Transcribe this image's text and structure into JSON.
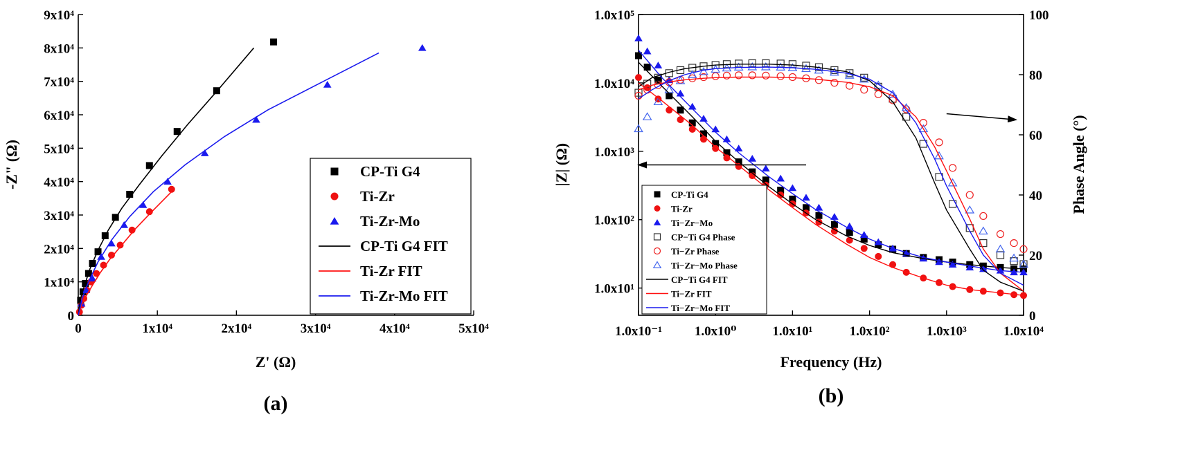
{
  "charts": [
    {
      "id": "a",
      "type": "scatter",
      "panel_label": "(a)",
      "xlabel": "Z' (Ω)",
      "ylabel": "-Z\" (Ω)",
      "xlim": [
        0,
        50000
      ],
      "ylim": [
        0,
        90000
      ],
      "xticks": [
        {
          "v": 0,
          "label": "0"
        },
        {
          "v": 10000,
          "label": "1x10⁴"
        },
        {
          "v": 20000,
          "label": "2x10⁴"
        },
        {
          "v": 30000,
          "label": "3x10⁴"
        },
        {
          "v": 40000,
          "label": "4x10⁴"
        },
        {
          "v": 50000,
          "label": "5x10⁴"
        }
      ],
      "yticks": [
        {
          "v": 0,
          "label": "0"
        },
        {
          "v": 10000,
          "label": "1x10⁴"
        },
        {
          "v": 20000,
          "label": "2x10⁴"
        },
        {
          "v": 30000,
          "label": "3x10⁴"
        },
        {
          "v": 40000,
          "label": "4x10⁴"
        },
        {
          "v": 50000,
          "label": "5x10⁴"
        },
        {
          "v": 60000,
          "label": "6x10⁴"
        },
        {
          "v": 70000,
          "label": "7x10⁴"
        },
        {
          "v": 80000,
          "label": "8x10⁴"
        },
        {
          "v": 90000,
          "label": "9x10⁴"
        }
      ],
      "legend_position": "bottom-right",
      "series": [
        {
          "name": "CP-Ti G4",
          "kind": "marker",
          "marker": "square",
          "color": "#000000",
          "x": [
            300,
            600,
            900,
            1300,
            1800,
            2500,
            3400,
            4700,
            6500,
            9000,
            12500,
            17500,
            24700
          ],
          "y": [
            4500,
            7000,
            9500,
            12500,
            15500,
            19000,
            23800,
            29300,
            36200,
            44800,
            55000,
            67200,
            81800
          ]
        },
        {
          "name": "Ti-Zr",
          "kind": "marker",
          "marker": "circle",
          "color": "#ee1111",
          "x": [
            150,
            400,
            700,
            1100,
            1600,
            2300,
            3200,
            4200,
            5300,
            6800,
            9000,
            11800
          ],
          "y": [
            1000,
            3000,
            5000,
            7500,
            10000,
            12500,
            15000,
            18000,
            21000,
            25500,
            31000,
            37700
          ]
        },
        {
          "name": "Ti-Zr-Mo",
          "kind": "marker",
          "marker": "triangle",
          "color": "#1a1aee",
          "x": [
            400,
            1000,
            1800,
            2900,
            4200,
            5800,
            8200,
            11300,
            16000,
            22500,
            31500,
            43500
          ],
          "y": [
            3500,
            7500,
            11000,
            17500,
            21500,
            27000,
            33000,
            40000,
            48500,
            58500,
            69000,
            80000
          ]
        },
        {
          "name": "CP-Ti G4 FIT",
          "kind": "line",
          "color": "#000000",
          "x": [
            0,
            300,
            800,
            1500,
            2500,
            3800,
            5500,
            7700,
            10500,
            13800,
            17500,
            22200
          ],
          "y": [
            0,
            5000,
            9000,
            14000,
            19500,
            25500,
            32000,
            39000,
            47500,
            57000,
            67000,
            80000
          ]
        },
        {
          "name": "Ti-Zr FIT",
          "kind": "line",
          "color": "#ff1111",
          "x": [
            0,
            400,
            1000,
            1800,
            2800,
            4000,
            5500,
            7200,
            9300,
            11800
          ],
          "y": [
            0,
            3000,
            5800,
            9000,
            12800,
            16800,
            21000,
            25800,
            31000,
            37000
          ]
        },
        {
          "name": "Ti-Zr-Mo FIT",
          "kind": "line",
          "color": "#1a1aee",
          "x": [
            0,
            500,
            1300,
            2500,
            4200,
            6500,
            9500,
            13500,
            18500,
            24000,
            31000,
            38000
          ],
          "y": [
            0,
            5000,
            10000,
            16000,
            22500,
            29500,
            37000,
            45000,
            53500,
            61500,
            70000,
            78500
          ]
        }
      ]
    },
    {
      "id": "b",
      "type": "scatter",
      "panel_label": "(b)",
      "xlabel": "Frequency (Hz)",
      "ylabel": "|Z| (Ω)",
      "y2label": "Phase Angle (°)",
      "x_scale": "log",
      "y_scale": "log",
      "xlim": [
        0.1,
        10000
      ],
      "ylim": [
        4,
        100000
      ],
      "y2lim": [
        0,
        100
      ],
      "xticks": [
        {
          "v": 0.1,
          "label": "1.0x10⁻¹"
        },
        {
          "v": 1,
          "label": "1.0x10⁰"
        },
        {
          "v": 10,
          "label": "1.0x10¹"
        },
        {
          "v": 100,
          "label": "1.0x10²"
        },
        {
          "v": 1000,
          "label": "1.0x10³"
        },
        {
          "v": 10000,
          "label": "1.0x10⁴"
        }
      ],
      "yticks": [
        {
          "v": 10,
          "label": "1.0x10¹"
        },
        {
          "v": 100,
          "label": "1.0x10²"
        },
        {
          "v": 1000,
          "label": "1.0x10³"
        },
        {
          "v": 10000,
          "label": "1.0x10⁴"
        },
        {
          "v": 100000,
          "label": "1.0x10⁵"
        }
      ],
      "y2ticks": [
        {
          "v": 0,
          "label": "0"
        },
        {
          "v": 20,
          "label": "20"
        },
        {
          "v": 40,
          "label": "40"
        },
        {
          "v": 60,
          "label": "60"
        },
        {
          "v": 80,
          "label": "80"
        },
        {
          "v": 100,
          "label": "100"
        }
      ],
      "legend_position": "bottom-left",
      "annotations": [
        {
          "kind": "arrow",
          "from": [
            1000,
            67
          ],
          "to": [
            8000,
            65
          ],
          "axis": "y2"
        },
        {
          "kind": "arrow",
          "from": [
            15,
            50
          ],
          "to": [
            0.1,
            50
          ],
          "axis": "y2"
        }
      ],
      "series": [
        {
          "name": "CP-Ti G4",
          "kind": "marker",
          "marker": "square",
          "fill": "solid",
          "color": "#000000",
          "axis": "y",
          "x": [
            0.1,
            0.13,
            0.18,
            0.25,
            0.35,
            0.5,
            0.7,
            1,
            1.4,
            2,
            3,
            4.5,
            7,
            10,
            15,
            22,
            35,
            55,
            85,
            130,
            200,
            300,
            500,
            800,
            1200,
            2000,
            3000,
            5000,
            7500,
            10000
          ],
          "y": [
            25000,
            17000,
            11000,
            6500,
            4000,
            2600,
            1800,
            1300,
            950,
            700,
            500,
            380,
            270,
            200,
            150,
            115,
            85,
            65,
            52,
            43,
            37,
            32,
            28,
            26,
            24,
            22,
            21,
            20,
            19,
            19
          ]
        },
        {
          "name": "Ti-Zr",
          "kind": "marker",
          "marker": "circle",
          "fill": "solid",
          "color": "#ee1111",
          "axis": "y",
          "x": [
            0.1,
            0.13,
            0.18,
            0.25,
            0.35,
            0.5,
            0.7,
            1,
            1.4,
            2,
            3,
            4.5,
            7,
            10,
            15,
            22,
            35,
            55,
            85,
            130,
            200,
            300,
            500,
            800,
            1200,
            2000,
            3000,
            5000,
            7500,
            10000
          ],
          "y": [
            12000,
            8500,
            5800,
            4000,
            2900,
            2100,
            1500,
            1100,
            800,
            600,
            440,
            320,
            230,
            170,
            125,
            92,
            68,
            50,
            38,
            29,
            22,
            17,
            14,
            12,
            10.5,
            9.5,
            9,
            8.5,
            8,
            7.8
          ]
        },
        {
          "name": "Ti−Zr−Mo",
          "kind": "marker",
          "marker": "triangle",
          "fill": "solid",
          "color": "#1a1aee",
          "axis": "y",
          "x": [
            0.1,
            0.13,
            0.18,
            0.25,
            0.35,
            0.5,
            0.7,
            1,
            1.4,
            2,
            3,
            4.5,
            7,
            10,
            15,
            22,
            35,
            55,
            85,
            130,
            200,
            300,
            500,
            800,
            1200,
            2000,
            3000,
            5000,
            7500,
            10000
          ],
          "y": [
            45000,
            29000,
            18000,
            11000,
            7000,
            4500,
            3000,
            2100,
            1500,
            1100,
            780,
            560,
            400,
            290,
            210,
            150,
            110,
            80,
            60,
            47,
            38,
            32,
            27,
            24,
            22,
            20,
            19,
            18,
            17,
            17
          ]
        },
        {
          "name": "CP−Ti G4 Phase",
          "kind": "marker",
          "marker": "square",
          "fill": "open",
          "color": "#333333",
          "axis": "y2",
          "x": [
            0.1,
            0.13,
            0.18,
            0.25,
            0.35,
            0.5,
            0.7,
            1,
            1.4,
            2,
            3,
            4.5,
            7,
            10,
            15,
            22,
            35,
            55,
            85,
            130,
            200,
            300,
            500,
            800,
            1200,
            2000,
            3000,
            5000,
            7500,
            10000
          ],
          "y": [
            74,
            77,
            79,
            80.5,
            81.5,
            82.3,
            82.8,
            83.2,
            83.5,
            83.7,
            83.8,
            83.8,
            83.7,
            83.5,
            83,
            82.5,
            81.5,
            80.5,
            79,
            76,
            72,
            66,
            57,
            46,
            37,
            29,
            24,
            20,
            18,
            17
          ]
        },
        {
          "name": "Ti−Zr Phase",
          "kind": "marker",
          "marker": "circle",
          "fill": "open",
          "color": "#ee2222",
          "axis": "y2",
          "x": [
            0.1,
            0.13,
            0.18,
            0.25,
            0.35,
            0.5,
            0.7,
            1,
            1.4,
            2,
            3,
            4.5,
            7,
            10,
            15,
            22,
            35,
            55,
            85,
            130,
            200,
            300,
            500,
            800,
            1200,
            2000,
            3000,
            5000,
            7500,
            10000
          ],
          "y": [
            73,
            75,
            76.5,
            77.5,
            78.3,
            78.8,
            79.2,
            79.5,
            79.7,
            79.8,
            79.8,
            79.7,
            79.5,
            79.2,
            78.8,
            78.2,
            77.3,
            76.3,
            75,
            73.5,
            71.5,
            68.5,
            64,
            57.5,
            49,
            40,
            33,
            27,
            24,
            22
          ]
        },
        {
          "name": "Ti−Zr−Mo Phase",
          "kind": "marker",
          "marker": "triangle",
          "fill": "open",
          "color": "#4466ee",
          "axis": "y2",
          "x": [
            0.1,
            0.13,
            0.18,
            0.25,
            0.35,
            0.5,
            0.7,
            1,
            1.4,
            2,
            3,
            4.5,
            7,
            10,
            15,
            22,
            35,
            55,
            85,
            130,
            200,
            300,
            500,
            800,
            1200,
            2000,
            3000,
            5000,
            7500,
            10000
          ],
          "y": [
            62,
            66,
            71,
            75,
            78,
            80,
            81,
            81.8,
            82.2,
            82.5,
            82.6,
            82.6,
            82.5,
            82.3,
            82,
            81.5,
            80.8,
            79.8,
            78.5,
            76.5,
            73.5,
            69,
            62,
            53,
            44,
            35,
            28,
            22,
            19,
            17
          ]
        },
        {
          "name": "CP−Ti G4 FIT",
          "kind": "line",
          "color": "#000000",
          "axis": "y",
          "x": [
            0.1,
            0.2,
            0.5,
            1,
            2,
            5,
            10,
            20,
            50,
            100,
            200,
            500,
            1000,
            2000,
            5000,
            10000
          ],
          "y": [
            20000,
            9000,
            3200,
            1400,
            700,
            300,
            170,
            100,
            58,
            42,
            33,
            27,
            24,
            22,
            20,
            19
          ]
        },
        {
          "name": "Ti−Zr FIT",
          "kind": "line",
          "color": "#ff1111",
          "axis": "y",
          "x": [
            0.1,
            0.2,
            0.5,
            1,
            2,
            5,
            10,
            20,
            50,
            100,
            200,
            500,
            1000,
            2000,
            5000,
            10000
          ],
          "y": [
            10000,
            5500,
            2400,
            1150,
            620,
            270,
            150,
            85,
            44,
            28,
            20,
            14,
            11,
            9.5,
            8.5,
            7.8
          ]
        },
        {
          "name": "Ti−Zr−Mo FIT",
          "kind": "line",
          "color": "#1a1aee",
          "axis": "y",
          "x": [
            0.1,
            0.2,
            0.5,
            1,
            2,
            5,
            10,
            20,
            50,
            100,
            200,
            500,
            1000,
            2000,
            5000,
            10000
          ],
          "y": [
            30000,
            12000,
            4200,
            1900,
            950,
            420,
            240,
            140,
            78,
            52,
            38,
            28,
            24,
            21,
            18,
            17
          ]
        },
        {
          "name": "CP−Ti G4 FIT",
          "kind": "line",
          "color": "#000000",
          "axis": "y2",
          "in_legend": false,
          "x": [
            0.1,
            0.15,
            0.25,
            0.4,
            0.7,
            1,
            2,
            5,
            10,
            20,
            50,
            100,
            200,
            400,
            700,
            1000,
            2000,
            3000,
            5000,
            10000
          ],
          "y": [
            76,
            79,
            80.8,
            82,
            82.8,
            83.2,
            83.5,
            83.5,
            83.2,
            82.5,
            81,
            78,
            71,
            59,
            44,
            35,
            22,
            15,
            11,
            8
          ]
        },
        {
          "name": "Ti−Zr FIT",
          "kind": "line",
          "color": "#ff1111",
          "axis": "y2",
          "in_legend": false,
          "x": [
            0.1,
            0.15,
            0.25,
            0.4,
            0.7,
            1,
            2,
            5,
            10,
            20,
            50,
            100,
            200,
            400,
            700,
            1000,
            2000,
            3000,
            5000,
            10000
          ],
          "y": [
            75,
            76.5,
            77.6,
            78.3,
            78.8,
            79,
            79.2,
            79.2,
            79,
            78.5,
            77.5,
            76,
            73,
            66,
            56,
            48,
            32,
            22,
            14,
            8
          ]
        },
        {
          "name": "Ti−Zr−Mo FIT",
          "kind": "line",
          "color": "#1a1aee",
          "axis": "y2",
          "in_legend": false,
          "x": [
            0.1,
            0.15,
            0.25,
            0.4,
            0.7,
            1,
            2,
            5,
            10,
            20,
            50,
            100,
            200,
            400,
            700,
            1000,
            2000,
            3000,
            5000,
            10000
          ],
          "y": [
            72,
            75,
            78,
            80,
            81.5,
            82,
            82.4,
            82.5,
            82.3,
            81.8,
            80.5,
            78.5,
            74,
            64,
            52,
            43,
            28,
            20,
            14,
            10
          ]
        }
      ]
    }
  ]
}
